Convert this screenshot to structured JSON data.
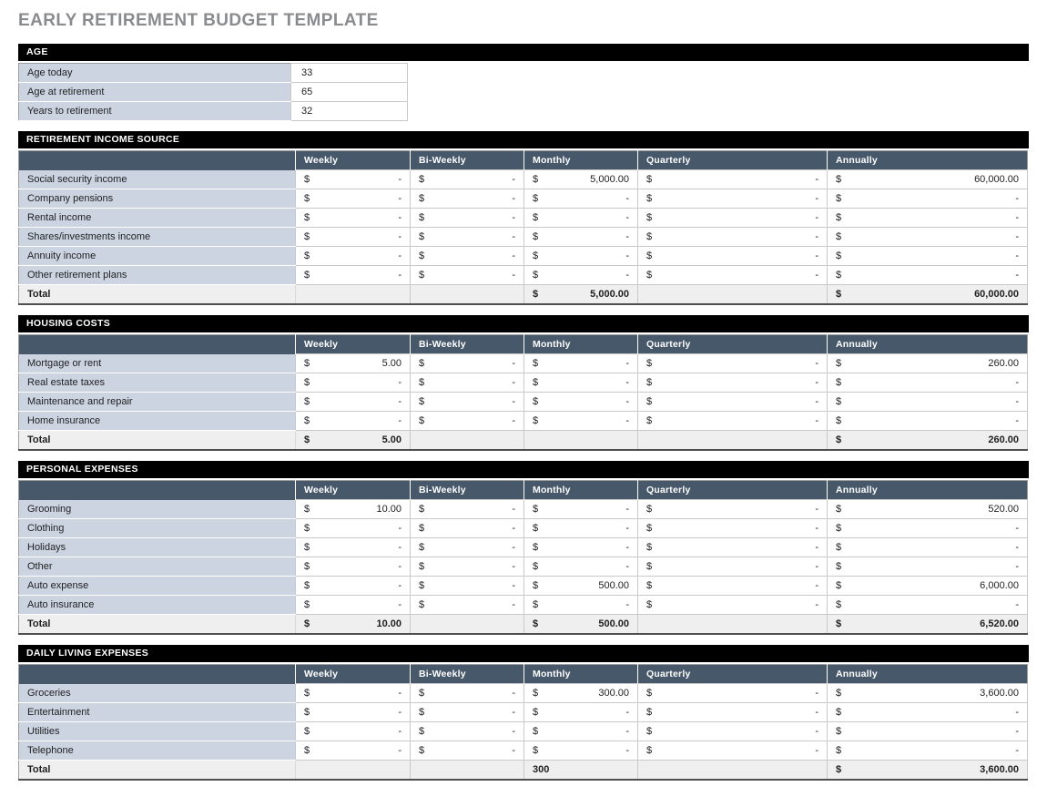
{
  "title": "EARLY RETIREMENT BUDGET TEMPLATE",
  "currency_symbol": "$",
  "colors": {
    "section_header_bg": "#000000",
    "column_header_bg": "#47586b",
    "label_cell_bg": "#ccd4e2",
    "total_row_bg": "#efefef",
    "title_color": "#8a8b8e"
  },
  "age": {
    "header": "AGE",
    "rows": [
      {
        "label": "Age today",
        "value": "33"
      },
      {
        "label": "Age at retirement",
        "value": "65"
      },
      {
        "label": "Years to retirement",
        "value": "32"
      }
    ]
  },
  "columns": [
    "Weekly",
    "Bi-Weekly",
    "Monthly",
    "Quarterly",
    "Annually"
  ],
  "sections": [
    {
      "title": "RETIREMENT INCOME SOURCE",
      "rows": [
        {
          "label": "Social security income",
          "values": [
            "-",
            "-",
            "5,000.00",
            "-",
            "60,000.00"
          ]
        },
        {
          "label": "Company pensions",
          "values": [
            "-",
            "-",
            "-",
            "-",
            "-"
          ]
        },
        {
          "label": "Rental income",
          "values": [
            "-",
            "-",
            "-",
            "-",
            "-"
          ]
        },
        {
          "label": "Shares/investments income",
          "values": [
            "-",
            "-",
            "-",
            "-",
            "-"
          ]
        },
        {
          "label": "Annuity income",
          "values": [
            "-",
            "-",
            "-",
            "-",
            "-"
          ]
        },
        {
          "label": "Other retirement plans",
          "values": [
            "-",
            "-",
            "-",
            "-",
            "-"
          ]
        }
      ],
      "total": {
        "label": "Total",
        "cells": [
          {
            "currency": "",
            "amount": ""
          },
          {
            "currency": "",
            "amount": ""
          },
          {
            "currency": "$",
            "amount": "5,000.00"
          },
          {
            "currency": "",
            "amount": ""
          },
          {
            "currency": "$",
            "amount": "60,000.00"
          }
        ]
      }
    },
    {
      "title": "HOUSING COSTS",
      "rows": [
        {
          "label": "Mortgage or rent",
          "values": [
            "5.00",
            "-",
            "-",
            "-",
            "260.00"
          ]
        },
        {
          "label": "Real estate taxes",
          "values": [
            "-",
            "-",
            "-",
            "-",
            "-"
          ]
        },
        {
          "label": "Maintenance and repair",
          "values": [
            "-",
            "-",
            "-",
            "-",
            "-"
          ]
        },
        {
          "label": "Home insurance",
          "values": [
            "-",
            "-",
            "-",
            "-",
            "-"
          ]
        }
      ],
      "total": {
        "label": "Total",
        "cells": [
          {
            "currency": "$",
            "amount": "5.00"
          },
          {
            "currency": "",
            "amount": ""
          },
          {
            "currency": "",
            "amount": ""
          },
          {
            "currency": "",
            "amount": ""
          },
          {
            "currency": "$",
            "amount": "260.00"
          }
        ]
      }
    },
    {
      "title": "PERSONAL EXPENSES",
      "rows": [
        {
          "label": "Grooming",
          "values": [
            "10.00",
            "-",
            "-",
            "-",
            "520.00"
          ]
        },
        {
          "label": "Clothing",
          "values": [
            "-",
            "-",
            "-",
            "-",
            "-"
          ]
        },
        {
          "label": "Holidays",
          "values": [
            "-",
            "-",
            "-",
            "-",
            "-"
          ]
        },
        {
          "label": "Other",
          "values": [
            "-",
            "-",
            "-",
            "-",
            "-"
          ]
        },
        {
          "label": "Auto expense",
          "values": [
            "-",
            "-",
            "500.00",
            "-",
            "6,000.00"
          ]
        },
        {
          "label": "Auto insurance",
          "values": [
            "-",
            "-",
            "-",
            "-",
            "-"
          ]
        }
      ],
      "total": {
        "label": "Total",
        "cells": [
          {
            "currency": "$",
            "amount": "10.00"
          },
          {
            "currency": "",
            "amount": ""
          },
          {
            "currency": "$",
            "amount": "500.00"
          },
          {
            "currency": "",
            "amount": ""
          },
          {
            "currency": "$",
            "amount": "6,520.00"
          }
        ]
      }
    },
    {
      "title": "DAILY LIVING EXPENSES",
      "rows": [
        {
          "label": "Groceries",
          "values": [
            "-",
            "-",
            "300.00",
            "-",
            "3,600.00"
          ]
        },
        {
          "label": "Entertainment",
          "values": [
            "-",
            "-",
            "-",
            "-",
            "-"
          ]
        },
        {
          "label": "Utilities",
          "values": [
            "-",
            "-",
            "-",
            "-",
            "-"
          ]
        },
        {
          "label": "Telephone",
          "values": [
            "-",
            "-",
            "-",
            "-",
            "-"
          ]
        }
      ],
      "total": {
        "label": "Total",
        "cells": [
          {
            "currency": "",
            "amount": ""
          },
          {
            "currency": "",
            "amount": ""
          },
          {
            "currency": "",
            "amount": "300",
            "align": "left"
          },
          {
            "currency": "",
            "amount": ""
          },
          {
            "currency": "$",
            "amount": "3,600.00"
          }
        ]
      }
    }
  ]
}
